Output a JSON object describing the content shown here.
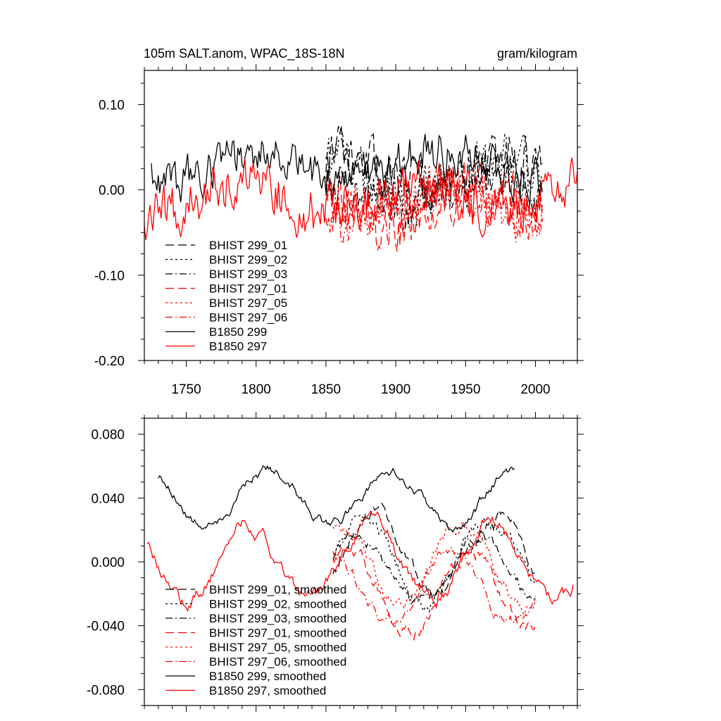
{
  "chart_data": [
    {
      "type": "line",
      "title_left": "105m SALT.anom, WPAC_18S-18N",
      "title_right": "gram/kilogram",
      "xlabel": "",
      "ylabel": "",
      "xlim": [
        1720,
        2030
      ],
      "ylim": [
        -0.2,
        0.14
      ],
      "x_ticks": [
        1750,
        1800,
        1850,
        1900,
        1950,
        2000
      ],
      "x_tick_labels": [
        "1750",
        "1800",
        "1850",
        "1900",
        "1950",
        "2000"
      ],
      "y_ticks": [
        0.1,
        0.0,
        -0.1,
        -0.2
      ],
      "y_tick_labels": [
        "0.10",
        "0.00",
        "-0.10",
        "-0.20"
      ],
      "legend_position": "bottom-left",
      "series": [
        {
          "name": "BHIST 299_01",
          "color": "#000000",
          "dash": "long-dash",
          "x_range": [
            1850,
            2005
          ],
          "mean": 0.02,
          "amp": 0.045,
          "seed": 11
        },
        {
          "name": "BHIST 299_02",
          "color": "#000000",
          "dash": "dot",
          "x_range": [
            1850,
            2005
          ],
          "mean": 0.01,
          "amp": 0.05,
          "seed": 12
        },
        {
          "name": "BHIST 299_03",
          "color": "#000000",
          "dash": "dash-dot",
          "x_range": [
            1850,
            2005
          ],
          "mean": 0.0,
          "amp": 0.045,
          "seed": 13
        },
        {
          "name": "BHIST 297_01",
          "color": "#ff0000",
          "dash": "long-dash",
          "x_range": [
            1850,
            2005
          ],
          "mean": -0.02,
          "amp": 0.05,
          "seed": 14
        },
        {
          "name": "BHIST 297_05",
          "color": "#ff0000",
          "dash": "dot",
          "x_range": [
            1850,
            2005
          ],
          "mean": -0.01,
          "amp": 0.05,
          "seed": 15
        },
        {
          "name": "BHIST 297_06",
          "color": "#ff0000",
          "dash": "dash-dot",
          "x_range": [
            1850,
            2005
          ],
          "mean": -0.02,
          "amp": 0.045,
          "seed": 16
        },
        {
          "name": "B1850 299",
          "color": "#000000",
          "dash": "solid",
          "x_range": [
            1725,
            2005
          ],
          "mean": 0.03,
          "amp": 0.04,
          "seed": 17
        },
        {
          "name": "B1850 297",
          "color": "#ff0000",
          "dash": "solid",
          "x_range": [
            1720,
            2030
          ],
          "mean": -0.01,
          "amp": 0.045,
          "seed": 18
        }
      ]
    },
    {
      "type": "line",
      "title_left": "",
      "title_right": "",
      "xlabel": "",
      "ylabel": "",
      "xlim": [
        1720,
        2030
      ],
      "ylim": [
        -0.09,
        0.09
      ],
      "x_ticks": [
        1750,
        1800,
        1850,
        1900,
        1950,
        2000
      ],
      "x_tick_labels": [],
      "y_ticks": [
        0.08,
        0.04,
        0.0,
        -0.04,
        -0.08
      ],
      "y_tick_labels": [
        "0.080",
        "0.040",
        "0.000",
        "-0.040",
        "-0.080"
      ],
      "legend_position": "bottom-left",
      "series": [
        {
          "name": "BHIST 299_01, smoothed",
          "color": "#000000",
          "dash": "long-dash",
          "x_range": [
            1855,
            2000
          ],
          "mean": 0.005,
          "amp": 0.035,
          "seed": 21
        },
        {
          "name": "BHIST 299_02, smoothed",
          "color": "#000000",
          "dash": "dot",
          "x_range": [
            1855,
            2000
          ],
          "mean": 0.0,
          "amp": 0.035,
          "seed": 22
        },
        {
          "name": "BHIST 299_03, smoothed",
          "color": "#000000",
          "dash": "dash-dot",
          "x_range": [
            1855,
            2000
          ],
          "mean": -0.005,
          "amp": 0.03,
          "seed": 23
        },
        {
          "name": "BHIST 297_01, smoothed",
          "color": "#ff0000",
          "dash": "long-dash",
          "x_range": [
            1855,
            2000
          ],
          "mean": -0.02,
          "amp": 0.035,
          "seed": 24
        },
        {
          "name": "BHIST 297_05, smoothed",
          "color": "#ff0000",
          "dash": "dot",
          "x_range": [
            1855,
            2000
          ],
          "mean": 0.0,
          "amp": 0.035,
          "seed": 25
        },
        {
          "name": "BHIST 297_06, smoothed",
          "color": "#ff0000",
          "dash": "dash-dot",
          "x_range": [
            1855,
            2000
          ],
          "mean": -0.015,
          "amp": 0.03,
          "seed": 26
        },
        {
          "name": "B1850 299, smoothed",
          "color": "#000000",
          "dash": "solid",
          "x_range": [
            1730,
            1985
          ],
          "mean": 0.04,
          "amp": 0.025,
          "seed": 27
        },
        {
          "name": "B1850 297, smoothed",
          "color": "#ff0000",
          "dash": "solid",
          "x_range": [
            1722,
            2027
          ],
          "mean": 0.0,
          "amp": 0.035,
          "seed": 28
        }
      ]
    }
  ]
}
